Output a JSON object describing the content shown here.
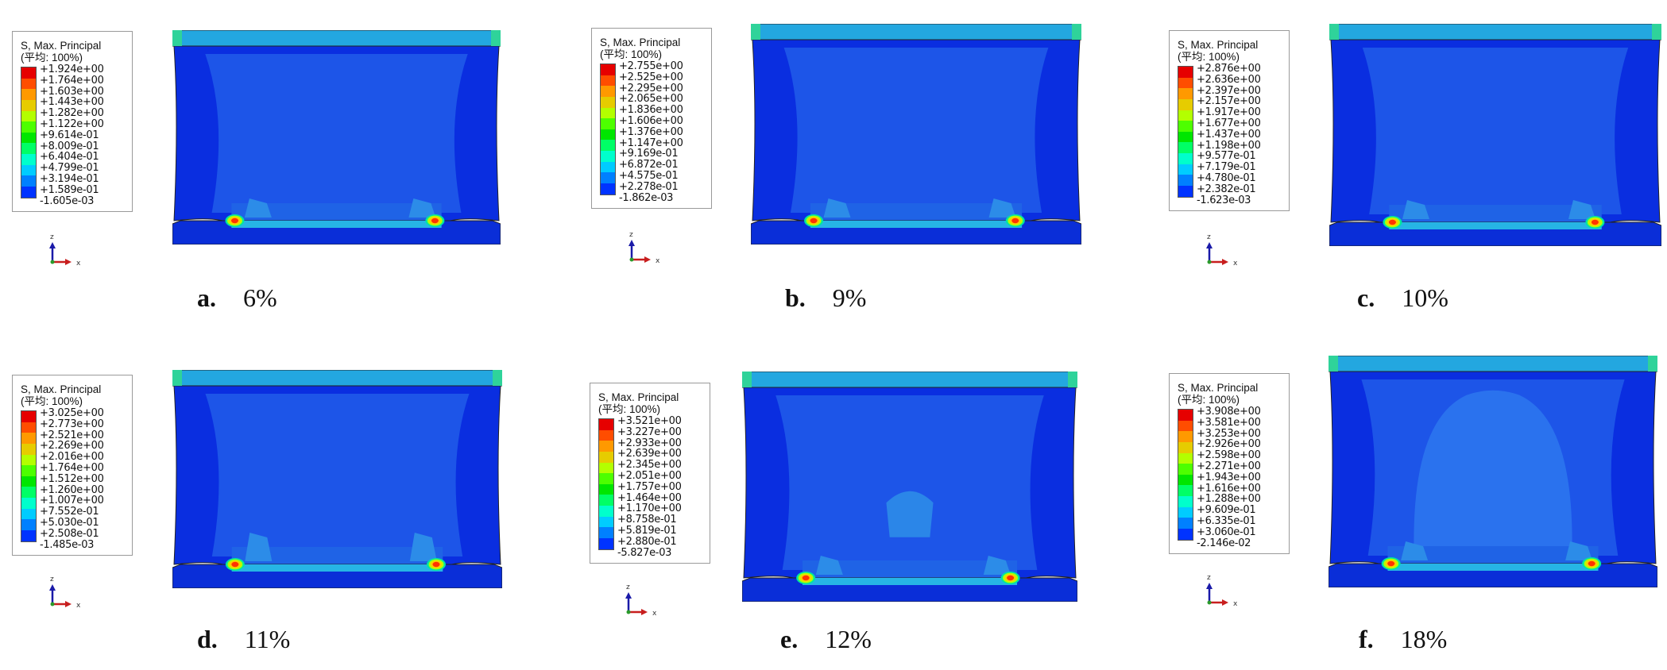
{
  "legend_title": "S, Max. Principal",
  "legend_subtitle": "(平均: 100%)",
  "axis_z": "z",
  "axis_x": "x",
  "colors": {
    "scale": [
      "#e60000",
      "#ff4d00",
      "#ff9900",
      "#e6cc00",
      "#b3ff00",
      "#4dff00",
      "#00e600",
      "#00ff66",
      "#00ffcc",
      "#00ccff",
      "#0080ff",
      "#0033ff"
    ],
    "body": "#0a2ee0",
    "body_core": "#1d55e8",
    "core_light": "#2a72ee",
    "cap": "#23a7e0",
    "cap_green": "#2fd39a",
    "base": "#0a2ed8",
    "base_top": "#26b5e5"
  },
  "panels": [
    {
      "letter": "a",
      "sep": ".",
      "percent": "6%",
      "values": [
        "+1.924e+00",
        "+1.764e+00",
        "+1.603e+00",
        "+1.443e+00",
        "+1.282e+00",
        "+1.122e+00",
        "+9.614e-01",
        "+8.009e-01",
        "+6.404e-01",
        "+4.799e-01",
        "+3.194e-01",
        "+1.589e-01",
        "-1.605e-03"
      ]
    },
    {
      "letter": "b",
      "sep": ".",
      "percent": "9%",
      "values": [
        "+2.755e+00",
        "+2.525e+00",
        "+2.295e+00",
        "+2.065e+00",
        "+1.836e+00",
        "+1.606e+00",
        "+1.376e+00",
        "+1.147e+00",
        "+9.169e-01",
        "+6.872e-01",
        "+4.575e-01",
        "+2.278e-01",
        "-1.862e-03"
      ]
    },
    {
      "letter": "c",
      "sep": ".",
      "percent": "10%",
      "values": [
        "+2.876e+00",
        "+2.636e+00",
        "+2.397e+00",
        "+2.157e+00",
        "+1.917e+00",
        "+1.677e+00",
        "+1.437e+00",
        "+1.198e+00",
        "+9.577e-01",
        "+7.179e-01",
        "+4.780e-01",
        "+2.382e-01",
        "-1.623e-03"
      ]
    },
    {
      "letter": "d",
      "sep": ".",
      "percent": "11%",
      "values": [
        "+3.025e+00",
        "+2.773e+00",
        "+2.521e+00",
        "+2.269e+00",
        "+2.016e+00",
        "+1.764e+00",
        "+1.512e+00",
        "+1.260e+00",
        "+1.007e+00",
        "+7.552e-01",
        "+5.030e-01",
        "+2.508e-01",
        "-1.485e-03"
      ]
    },
    {
      "letter": "e",
      "sep": ".",
      "percent": "12%",
      "values": [
        "+3.521e+00",
        "+3.227e+00",
        "+2.933e+00",
        "+2.639e+00",
        "+2.345e+00",
        "+2.051e+00",
        "+1.757e+00",
        "+1.464e+00",
        "+1.170e+00",
        "+8.758e-01",
        "+5.819e-01",
        "+2.880e-01",
        "-5.827e-03"
      ]
    },
    {
      "letter": "f",
      "sep": ".",
      "percent": "18%",
      "values": [
        "+3.908e+00",
        "+3.581e+00",
        "+3.253e+00",
        "+2.926e+00",
        "+2.598e+00",
        "+2.271e+00",
        "+1.943e+00",
        "+1.616e+00",
        "+1.288e+00",
        "+9.609e-01",
        "+6.335e-01",
        "+3.060e-01",
        "-2.146e-02"
      ]
    }
  ]
}
